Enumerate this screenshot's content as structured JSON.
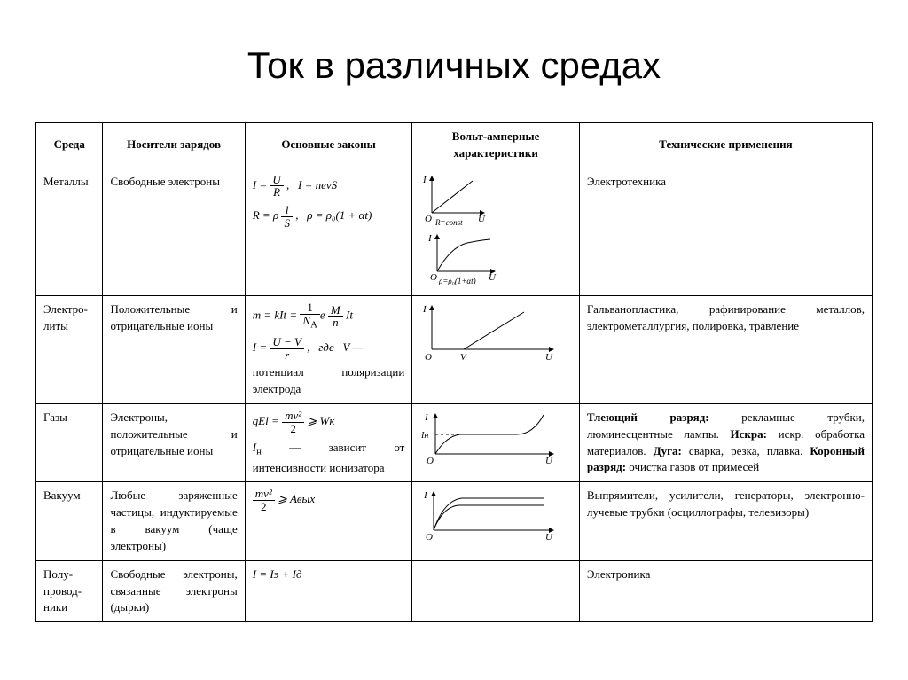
{
  "title": "Ток в различных средах",
  "columns": [
    "Среда",
    "Носители зарядов",
    "Основные законы",
    "Вольт-амперные характеристики",
    "Технические применения"
  ],
  "rows": {
    "metals": {
      "env": "Металлы",
      "carriers": "Свободные электроны",
      "applications": "Электротехника",
      "formula": {
        "line1_a": "I =",
        "line1_num": "U",
        "line1_den": "R",
        "line1_b": ",   I = nevS",
        "line2_a": "R = ρ",
        "line2_num": "l",
        "line2_den": "S",
        "line2_b": ",   ρ = ρ₀(1 + αt)"
      },
      "chart1": {
        "ylabel": "I",
        "xlabel": "U",
        "caption": "R=const",
        "type": "linear"
      },
      "chart2": {
        "ylabel": "I",
        "xlabel": "U",
        "caption": "ρ=ρ₀(1+αt)",
        "type": "saturating"
      }
    },
    "electrolytes": {
      "env": "Электро-литы",
      "carriers": "Положительные и отрицательные ионы",
      "applications": "Гальванопластика, рафинирование металлов, электрометаллургия, полировка, травление",
      "formula": {
        "line1_a": "m = kIt =",
        "line1_num1": "1",
        "line1_den1": "NA",
        "line1_mid": "e",
        "line1_num2": "M",
        "line1_den2": "n",
        "line1_b": " It",
        "line2_a": "I =",
        "line2_num": "U − V",
        "line2_den": "r",
        "line2_b": ",   где   V —",
        "line3": "потенциал поляризации электрода"
      },
      "chart": {
        "ylabel": "I",
        "xlabel": "U",
        "xintercept": "V",
        "type": "linear-offset"
      }
    },
    "gases": {
      "env": "Газы",
      "carriers": "Электроны, положительные и отрицательные ионы",
      "applications_html": "<b>Тлеющий разряд:</b> рекламные трубки, люминесцентные лампы. <b>Искра:</b> искр. обработка материалов. <b>Дуга:</b> сварка, резка, плавка. <b>Коронный разряд:</b> очистка газов от примесей",
      "formula": {
        "line1_a": "qEl =",
        "line1_num": "mv²",
        "line1_den": "2",
        "line1_b": " ⩾ Wᴋ",
        "line2": "Iн — зависит от интенсивности ионизатора"
      },
      "chart": {
        "ylabel": "I",
        "ylabel2": "Iн",
        "xlabel": "U",
        "type": "plateau-rise"
      }
    },
    "vacuum": {
      "env": "Вакуум",
      "carriers": "Любые заряженные частицы, индуктируемые в вакуум (чаще электроны)",
      "applications": "Выпрямители, усилители, генераторы, электронно-лучевые трубки (осциллографы, телевизоры)",
      "formula": {
        "num": "mv²",
        "den": "2",
        "tail": " ⩾ Aвых"
      },
      "chart": {
        "ylabel": "I",
        "xlabel": "U",
        "type": "double-sat"
      }
    },
    "semi": {
      "env": "Полу-провод-ники",
      "carriers": "Свободные электроны, связанные электроны (дырки)",
      "applications": "Электроника",
      "formula": {
        "line1": "I = Iэ + Iд"
      }
    }
  },
  "style": {
    "font_family": "Times New Roman",
    "title_font_family": "Arial",
    "title_fontsize": 42,
    "body_fontsize": 13,
    "border_color": "#000000",
    "background": "#ffffff",
    "chart": {
      "w": 78,
      "h": 56,
      "ox": 14,
      "oy": 44,
      "axis_color": "#000000",
      "stroke_width": 1,
      "arrow": "3,3"
    }
  }
}
